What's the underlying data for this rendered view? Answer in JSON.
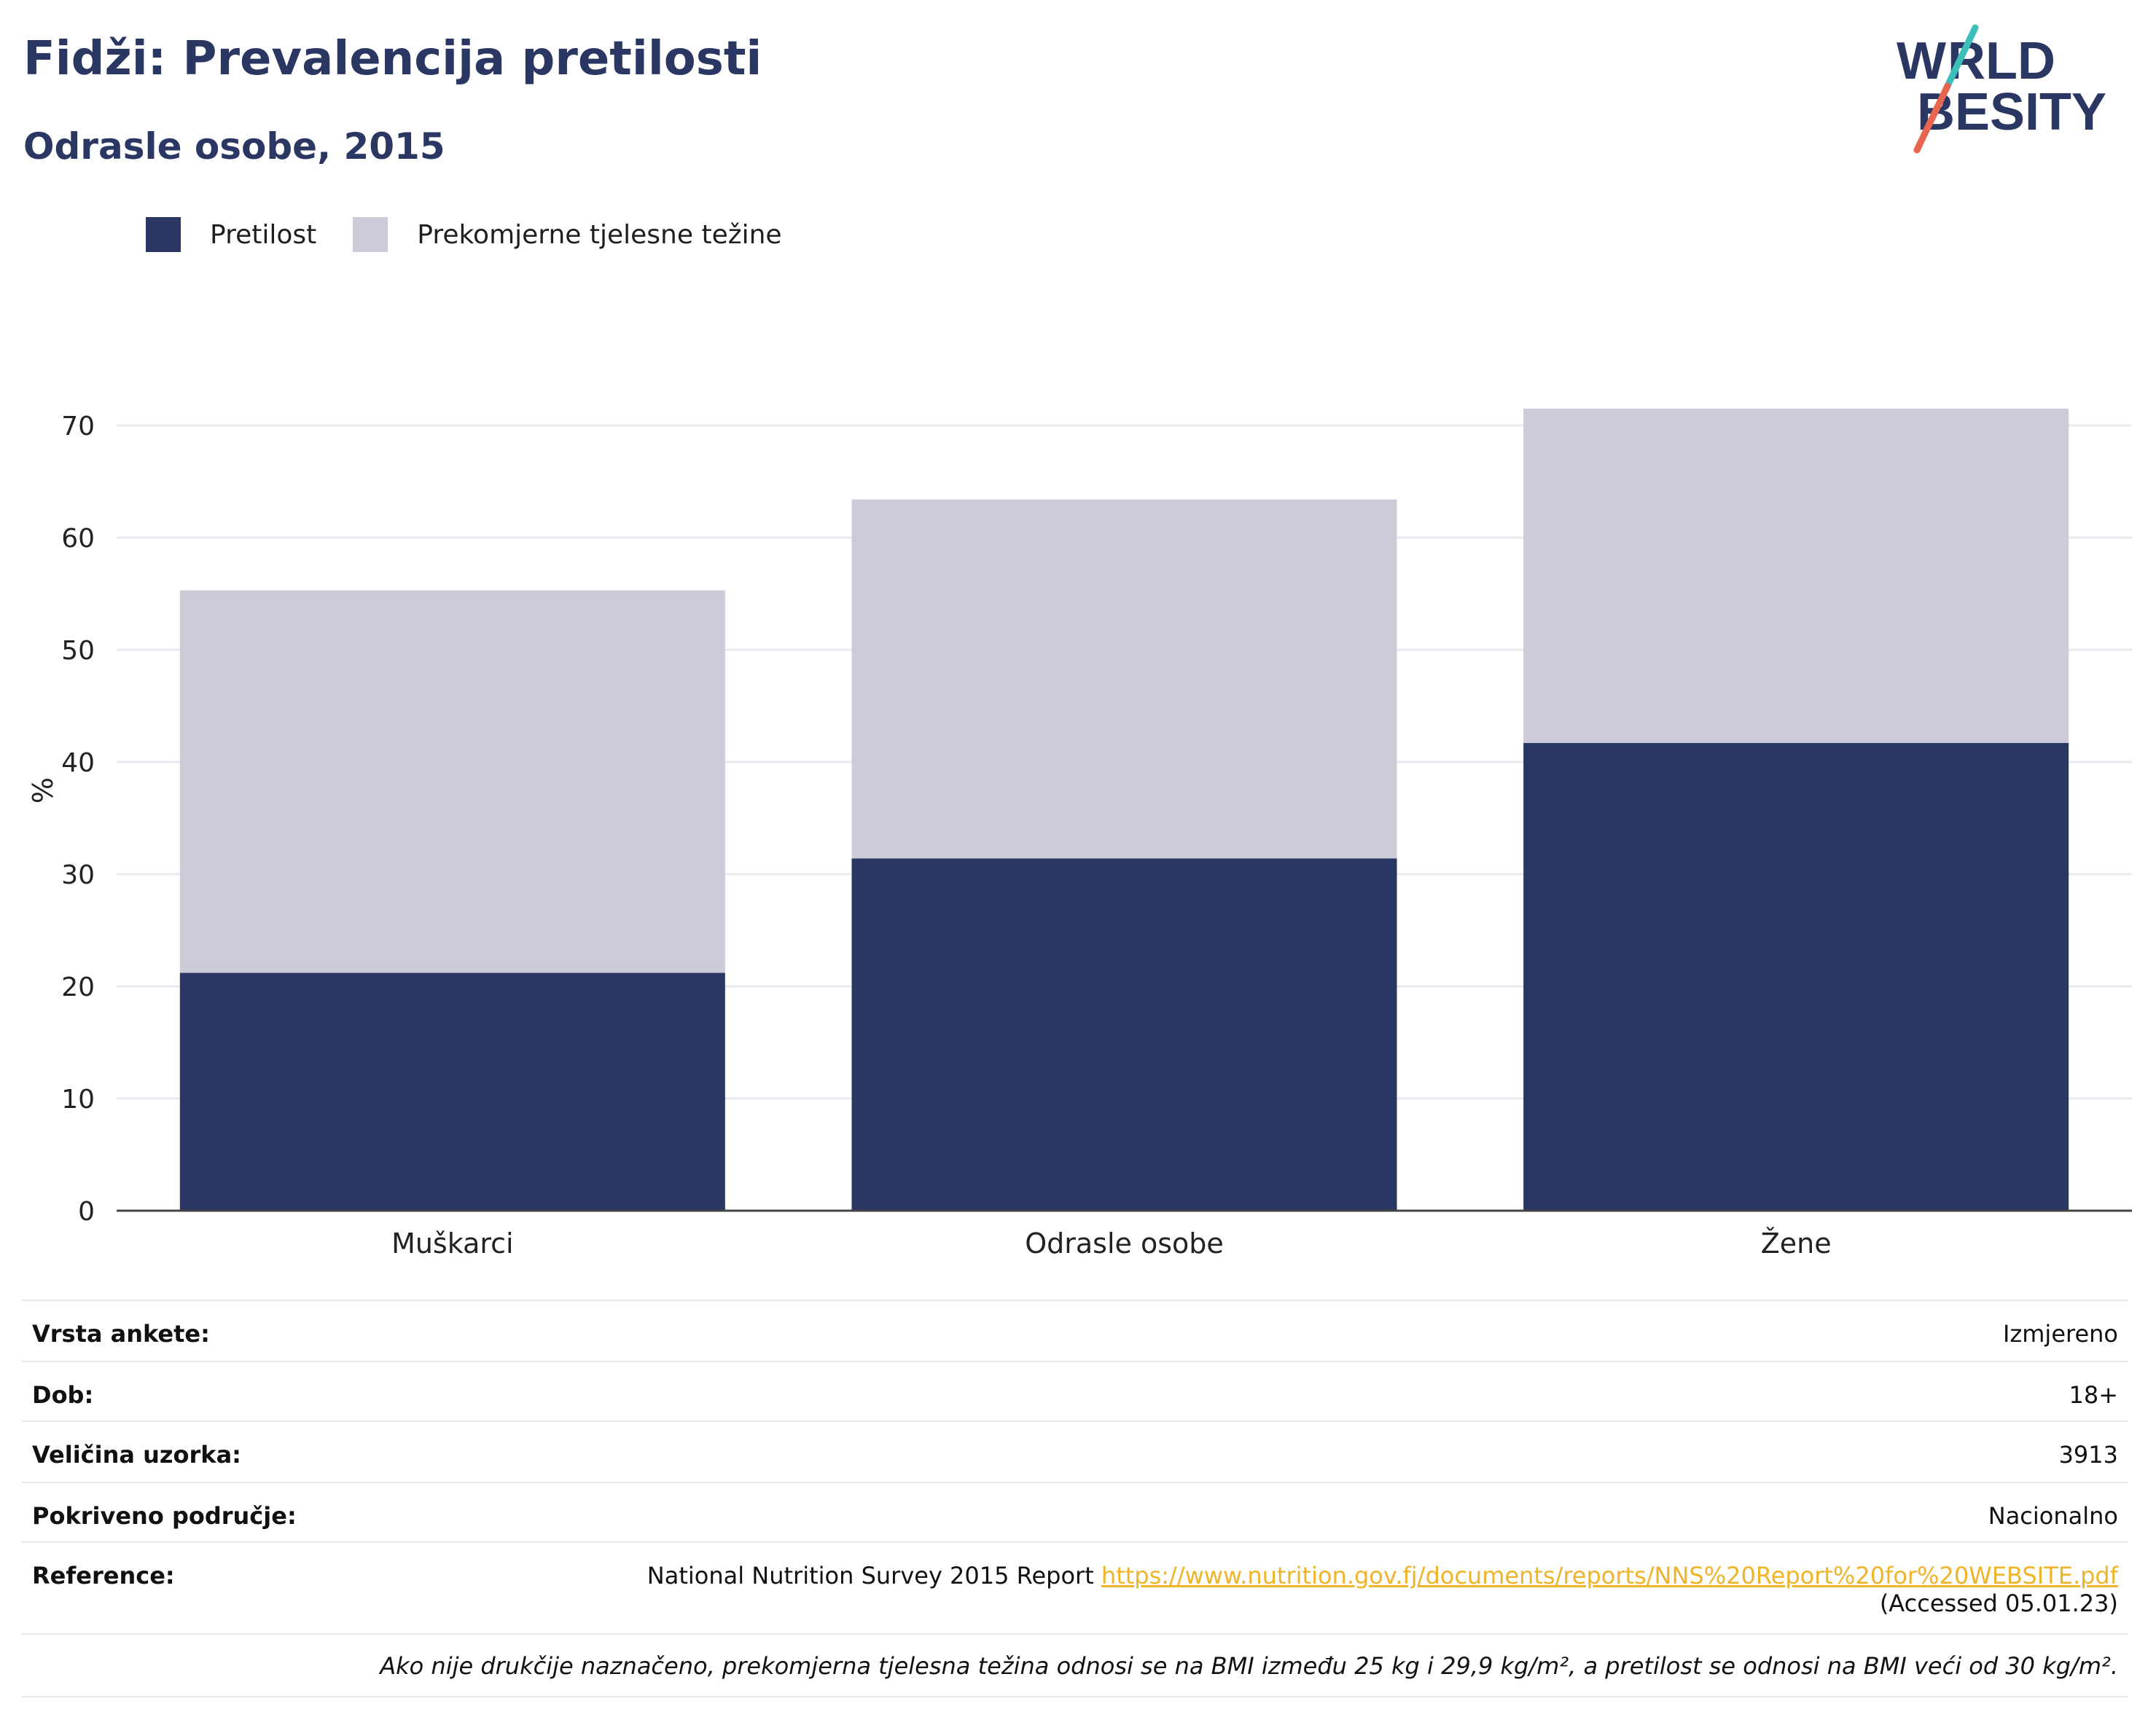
{
  "header": {
    "title": "Fidži: Prevalencija pretilosti",
    "subtitle": "Odrasle osobe, 2015"
  },
  "logo": {
    "line1": "WORLD",
    "line2": "OBESITY"
  },
  "colors": {
    "obesity": "#2a3763",
    "overweight": "#cbccd8",
    "accent_teal": "#3bbfb8",
    "accent_red": "#e8664f",
    "link": "#f0b429"
  },
  "legend": {
    "items": [
      {
        "label": "Pretilost",
        "color": "#2a3763"
      },
      {
        "label": "Prekomjerne tjelesne težine",
        "color": "#cbccd8"
      }
    ]
  },
  "chart_data": {
    "type": "bar",
    "stacked": true,
    "categories": [
      "Muškarci",
      "Odrasle osobe",
      "Žene"
    ],
    "series": [
      {
        "name": "Pretilost",
        "values": [
          21.2,
          31.4,
          41.7
        ]
      },
      {
        "name": "Prekomjerne tjelesne težine",
        "values": [
          34.1,
          32.0,
          29.8
        ]
      }
    ],
    "ylabel": "%",
    "ylim": [
      0,
      72
    ],
    "yticks": [
      0,
      10,
      20,
      30,
      40,
      50,
      60,
      70
    ],
    "grid": true,
    "legend_position": "top-left"
  },
  "info": {
    "rows": [
      {
        "key": "Vrsta ankete:",
        "value": "Izmjereno"
      },
      {
        "key": "Dob:",
        "value": "18+"
      },
      {
        "key": "Veličina uzorka:",
        "value": "3913"
      },
      {
        "key": "Pokriveno područje:",
        "value": "Nacionalno"
      }
    ],
    "reference": {
      "key": "Reference:",
      "text": "National Nutrition Survey 2015 Report ",
      "link": "https://www.nutrition.gov.fj/documents/reports/NNS%20Report%20for%20WEBSITE.pdf",
      "accessed": "(Accessed 05.01.23)"
    },
    "note": "Ako nije drukčije naznačeno, prekomjerna tjelesna težina odnosi se na BMI između 25 kg i 29,9 kg/m², a pretilost se odnosi na BMI veći od 30 kg/m²."
  }
}
